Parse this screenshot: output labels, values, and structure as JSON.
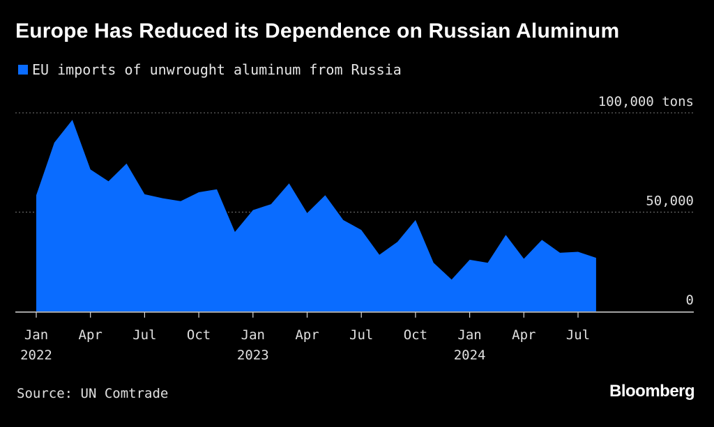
{
  "colors": {
    "background": "#000000",
    "area": "#0a6cff",
    "text": "#ffffff",
    "grid": "#7a7a7a"
  },
  "chart_data": {
    "type": "area",
    "title": "Europe Has Reduced its Dependence on Russian Aluminum",
    "series": [
      {
        "name": "EU imports of unwrought aluminum from Russia",
        "unit": "tons",
        "x": [
          "2022-01",
          "2022-02",
          "2022-03",
          "2022-04",
          "2022-05",
          "2022-06",
          "2022-07",
          "2022-08",
          "2022-09",
          "2022-10",
          "2022-11",
          "2022-12",
          "2023-01",
          "2023-02",
          "2023-03",
          "2023-04",
          "2023-05",
          "2023-06",
          "2023-07",
          "2023-08",
          "2023-09",
          "2023-10",
          "2023-11",
          "2023-12",
          "2024-01",
          "2024-02",
          "2024-03",
          "2024-04",
          "2024-05",
          "2024-06",
          "2024-07",
          "2024-08"
        ],
        "values": [
          58500,
          85000,
          96500,
          71500,
          65500,
          74500,
          59000,
          57000,
          55500,
          60000,
          61500,
          40000,
          51000,
          54000,
          64500,
          49500,
          58500,
          46000,
          41000,
          28500,
          35000,
          46000,
          24500,
          16000,
          26000,
          24500,
          38500,
          26500,
          36000,
          29500,
          30000,
          27000
        ]
      }
    ],
    "y_ticks": [
      {
        "value": 100000,
        "label": "100,000 tons"
      },
      {
        "value": 50000,
        "label": "50,000"
      },
      {
        "value": 0,
        "label": "0"
      }
    ],
    "x_ticks": [
      {
        "index": 0,
        "label": "Jan",
        "year": "2022"
      },
      {
        "index": 3,
        "label": "Apr",
        "year": ""
      },
      {
        "index": 6,
        "label": "Jul",
        "year": ""
      },
      {
        "index": 9,
        "label": "Oct",
        "year": ""
      },
      {
        "index": 12,
        "label": "Jan",
        "year": "2023"
      },
      {
        "index": 15,
        "label": "Apr",
        "year": ""
      },
      {
        "index": 18,
        "label": "Jul",
        "year": ""
      },
      {
        "index": 21,
        "label": "Oct",
        "year": ""
      },
      {
        "index": 24,
        "label": "Jan",
        "year": "2024"
      },
      {
        "index": 27,
        "label": "Apr",
        "year": ""
      },
      {
        "index": 30,
        "label": "Jul",
        "year": ""
      }
    ],
    "ylim": [
      0,
      100000
    ],
    "grid": true,
    "legend": "top-left"
  },
  "source": "Source: UN Comtrade",
  "brand": "Bloomberg"
}
